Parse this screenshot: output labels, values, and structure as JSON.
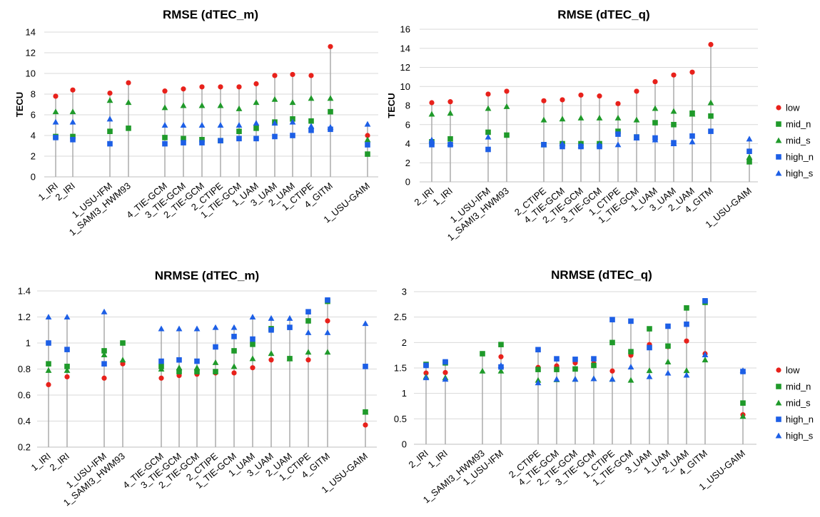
{
  "colors": {
    "low": "#e8211b",
    "mid_n": "#1f9a2a",
    "mid_s": "#1f9a2a",
    "high_n": "#1d5fe6",
    "high_s": "#1d5fe6",
    "stem": "#a6a6a6",
    "grid": "#d9d9d9"
  },
  "chart_data": [
    {
      "type": "scatter",
      "title": "RMSE (dTEC_m)",
      "ylabel": "TECU",
      "xlabel": "",
      "ylim": [
        0,
        14
      ],
      "yticks": [
        0,
        2,
        4,
        6,
        8,
        10,
        12,
        14
      ],
      "ytick_labels": [
        "0",
        "2",
        "4",
        "6",
        "8",
        "10",
        "12",
        "14"
      ],
      "categories": [
        "1_IRI",
        "2_IRI",
        "1_USU-IFM",
        "1_SAMI3_HWM93",
        "4_TIE-GCM",
        "3_TIE-GCM",
        "2_TIE-GCM",
        "2_CTIPE",
        "1_TIE-GCM",
        "1_UAM",
        "3_UAM",
        "2_UAM",
        "1_CTIPE",
        "4_GITM",
        "1_USU-GAIM"
      ],
      "series": [
        {
          "name": "low",
          "marker": "circle",
          "values": [
            7.8,
            8.4,
            8.1,
            9.1,
            8.3,
            8.5,
            8.7,
            8.7,
            8.7,
            9.0,
            9.8,
            9.9,
            9.8,
            12.6,
            4.0
          ]
        },
        {
          "name": "mid_n",
          "marker": "square",
          "values": [
            3.9,
            3.9,
            4.4,
            4.7,
            3.8,
            3.7,
            3.6,
            3.5,
            4.4,
            4.7,
            5.3,
            5.6,
            5.4,
            6.3,
            2.2
          ]
        },
        {
          "name": "mid_s",
          "marker": "triangle",
          "values": [
            6.3,
            6.3,
            7.4,
            7.2,
            6.7,
            6.9,
            6.9,
            6.9,
            6.6,
            7.2,
            7.5,
            7.2,
            7.6,
            7.6,
            3.6
          ]
        },
        {
          "name": "high_n",
          "marker": "square",
          "values": [
            3.8,
            3.6,
            3.2,
            null,
            3.2,
            3.3,
            3.3,
            3.5,
            3.7,
            3.7,
            3.9,
            4.0,
            4.5,
            4.6,
            3.1
          ]
        },
        {
          "name": "high_s",
          "marker": "triangle",
          "values": [
            5.3,
            5.3,
            5.6,
            null,
            5.0,
            5.0,
            5.0,
            5.0,
            5.0,
            5.2,
            5.2,
            5.3,
            4.9,
            4.8,
            5.1
          ]
        }
      ]
    },
    {
      "type": "scatter",
      "title": "RMSE (dTEC_q)",
      "ylabel": "TECU",
      "xlabel": "",
      "ylim": [
        0,
        16
      ],
      "yticks": [
        0,
        2,
        4,
        6,
        8,
        10,
        12,
        14,
        16
      ],
      "ytick_labels": [
        "0",
        "2",
        "4",
        "6",
        "8",
        "10",
        "12",
        "14",
        "16"
      ],
      "categories": [
        "2_IRI",
        "1_IRI",
        "1_USU-IFM",
        "1_SAMI3_HWM93",
        "2_CTIPE",
        "4_TIE-GCM",
        "2_TIE-GCM",
        "3_TIE-GCM",
        "1_CTIPE",
        "1_TIE-GCM",
        "1_UAM",
        "3_UAM",
        "2_UAM",
        "4_GITM",
        "1_USU-GAIM"
      ],
      "legend": [
        "low",
        "mid_n",
        "mid_s",
        "high_n",
        "high_s"
      ],
      "series": [
        {
          "name": "low",
          "marker": "circle",
          "values": [
            8.3,
            8.4,
            9.2,
            9.5,
            8.5,
            8.6,
            9.1,
            9.0,
            8.2,
            9.5,
            10.5,
            11.2,
            11.5,
            14.4,
            3.2
          ]
        },
        {
          "name": "mid_n",
          "marker": "square",
          "values": [
            4.2,
            4.5,
            5.2,
            4.9,
            3.9,
            4.0,
            4.0,
            4.0,
            5.3,
            4.7,
            6.2,
            6.0,
            7.2,
            6.9,
            2.1
          ]
        },
        {
          "name": "mid_s",
          "marker": "triangle",
          "values": [
            7.1,
            7.2,
            7.7,
            7.9,
            6.5,
            6.6,
            6.7,
            6.7,
            6.7,
            6.5,
            7.7,
            7.4,
            7.1,
            8.3,
            2.6
          ]
        },
        {
          "name": "high_n",
          "marker": "square",
          "values": [
            3.9,
            3.9,
            3.4,
            null,
            3.9,
            3.7,
            3.7,
            3.7,
            5.0,
            4.7,
            4.6,
            4.1,
            4.8,
            5.3,
            3.2
          ]
        },
        {
          "name": "high_s",
          "marker": "triangle",
          "values": [
            4.4,
            4.0,
            4.7,
            null,
            3.9,
            4.0,
            3.8,
            3.9,
            3.9,
            4.6,
            4.4,
            4.0,
            4.2,
            null,
            4.5
          ]
        }
      ]
    },
    {
      "type": "scatter",
      "title": "NRMSE (dTEC_m)",
      "ylabel": "",
      "xlabel": "",
      "ylim": [
        0.2,
        1.4
      ],
      "yticks": [
        0.2,
        0.4,
        0.6,
        0.8,
        1.0,
        1.2,
        1.4
      ],
      "ytick_labels": [
        "0.2",
        "0.4",
        "0.6",
        "0.8",
        "1",
        "1.2",
        "1.4"
      ],
      "categories": [
        "1_IRI",
        "2_IRI",
        "1_USU-IFM",
        "1_SAMI3_HWM93",
        "4_TIE-GCM",
        "3_TIE-GCM",
        "2_TIE-GCM",
        "2_CTIPE",
        "1_TIE-GCM",
        "1_UAM",
        "3_UAM",
        "2_UAM",
        "1_CTIPE",
        "4_GITM",
        "1_USU-GAIM"
      ],
      "series": [
        {
          "name": "low",
          "marker": "circle",
          "values": [
            0.68,
            0.74,
            0.73,
            0.84,
            0.73,
            0.75,
            0.76,
            0.77,
            0.77,
            0.81,
            0.87,
            0.88,
            0.87,
            1.17,
            0.37
          ]
        },
        {
          "name": "mid_n",
          "marker": "square",
          "values": [
            0.84,
            0.82,
            0.94,
            1.0,
            0.82,
            0.78,
            0.78,
            0.78,
            0.94,
            0.99,
            1.11,
            0.88,
            1.17,
            1.32,
            0.47
          ]
        },
        {
          "name": "mid_s",
          "marker": "triangle",
          "values": [
            0.79,
            0.79,
            0.91,
            0.87,
            0.8,
            0.81,
            0.81,
            0.85,
            0.82,
            0.88,
            0.92,
            0.88,
            0.93,
            0.93,
            0.47
          ]
        },
        {
          "name": "high_n",
          "marker": "square",
          "values": [
            1.0,
            0.95,
            0.84,
            null,
            0.86,
            0.87,
            0.86,
            0.97,
            1.05,
            1.03,
            1.1,
            1.12,
            1.24,
            1.33,
            0.82
          ]
        },
        {
          "name": "high_s",
          "marker": "triangle",
          "values": [
            1.2,
            1.2,
            1.24,
            null,
            1.11,
            1.11,
            1.11,
            1.12,
            1.12,
            1.2,
            1.19,
            1.19,
            1.08,
            1.08,
            1.15
          ]
        }
      ]
    },
    {
      "type": "scatter",
      "title": "NRMSE (dTEC_q)",
      "ylabel": "",
      "xlabel": "",
      "ylim": [
        0,
        3
      ],
      "yticks": [
        0,
        0.5,
        1,
        1.5,
        2,
        2.5,
        3
      ],
      "ytick_labels": [
        "0",
        "0.5",
        "1",
        "1.5",
        "2",
        "2.5",
        "3"
      ],
      "categories": [
        "2_IRI",
        "1_IRI",
        "1_SAMI3_HWM93",
        "1_USU-IFM",
        "2_CTIPE",
        "4_TIE-GCM",
        "2_TIE-GCM",
        "3_TIE-GCM",
        "1_CTIPE",
        "1_TIE-GCM",
        "3_UAM",
        "1_UAM",
        "2_UAM",
        "4_GITM",
        "1_USU-GAIM"
      ],
      "legend": [
        "low",
        "mid_n",
        "mid_s",
        "high_n",
        "high_s"
      ],
      "series": [
        {
          "name": "low",
          "marker": "circle",
          "values": [
            1.4,
            1.41,
            1.78,
            1.72,
            1.51,
            1.54,
            1.6,
            1.59,
            1.44,
            1.75,
            1.96,
            1.92,
            2.03,
            1.78,
            0.58
          ]
        },
        {
          "name": "mid_n",
          "marker": "square",
          "values": [
            1.57,
            1.6,
            1.78,
            1.96,
            1.47,
            1.47,
            1.48,
            1.55,
            2.0,
            1.82,
            2.27,
            1.93,
            2.68,
            2.79,
            0.81
          ]
        },
        {
          "name": "mid_s",
          "marker": "triangle",
          "values": [
            1.33,
            1.31,
            1.44,
            1.44,
            1.26,
            1.27,
            1.28,
            1.29,
            1.28,
            1.26,
            1.45,
            1.62,
            1.45,
            1.66,
            0.55
          ]
        },
        {
          "name": "high_n",
          "marker": "square",
          "values": [
            1.55,
            1.62,
            null,
            1.52,
            1.86,
            1.68,
            1.67,
            1.68,
            2.45,
            2.42,
            1.9,
            2.32,
            2.36,
            2.82,
            1.43
          ]
        },
        {
          "name": "high_s",
          "marker": "triangle",
          "values": [
            1.31,
            1.28,
            null,
            1.55,
            1.21,
            1.28,
            1.28,
            1.29,
            1.28,
            1.52,
            1.33,
            1.4,
            1.36,
            1.76,
            1.45
          ]
        }
      ]
    }
  ]
}
